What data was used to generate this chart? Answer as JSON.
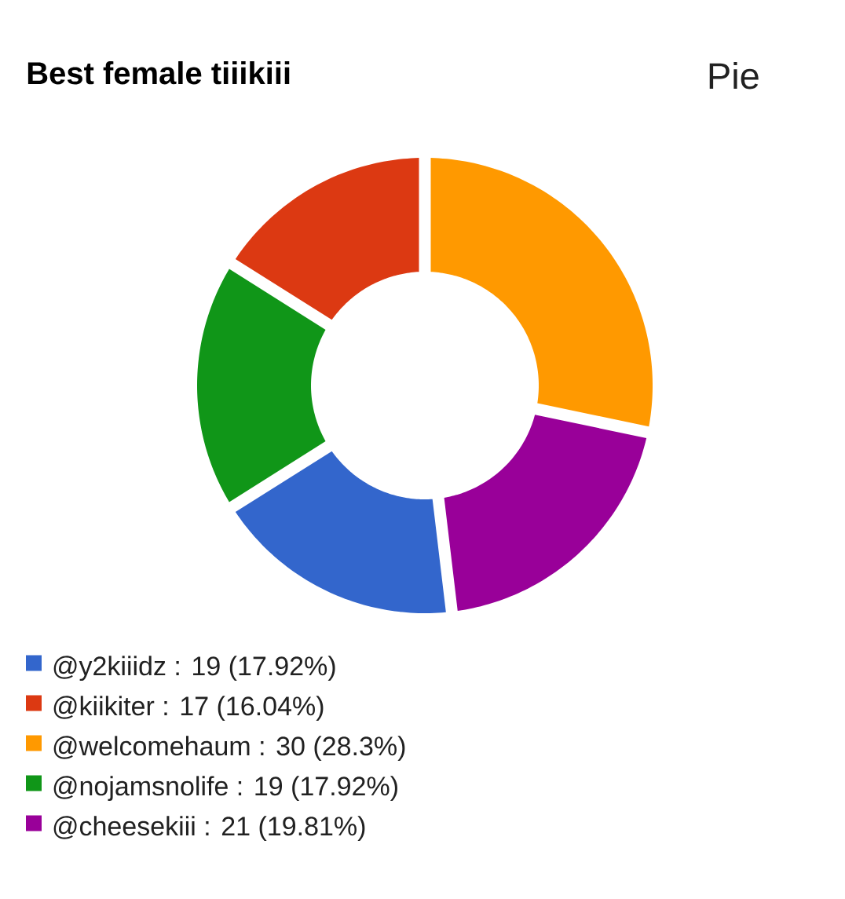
{
  "chart_data": {
    "type": "donut",
    "title": "Best female tiiikiii",
    "categories": [
      "@y2kiiidz : 19 (17.92%)",
      "@kiikiter : 17 (16.04%)",
      "@welcomehaum : 30 (28.3%)",
      "@nojamsnolife : 19 (17.92%)",
      "@cheesekiii : 21 (19.81%)"
    ],
    "values": [
      19,
      17,
      30,
      19,
      21
    ],
    "colors": [
      "#3366cc",
      "#dc3912",
      "#ff9900",
      "#109618",
      "#990099"
    ],
    "legend": "bottom left",
    "annotations": [
      "Pie"
    ]
  }
}
